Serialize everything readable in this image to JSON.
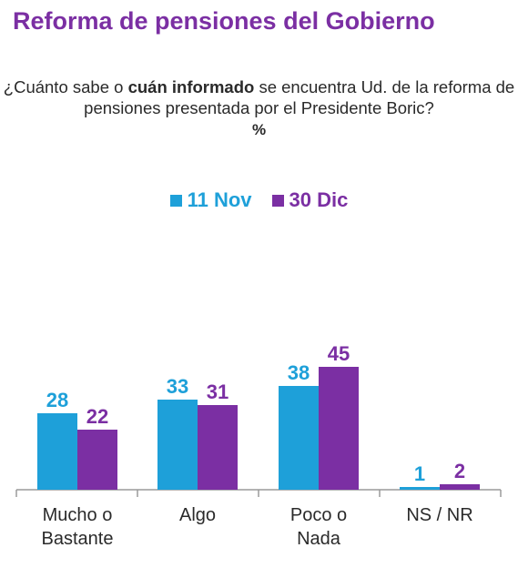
{
  "title": "Reforma de pensiones del Gobierno",
  "question": {
    "part1": "¿Cuánto sabe o ",
    "bold": "cuán informado",
    "part2": " se encuentra Ud. de la reforma de pensiones presentada por el Presidente Boric?",
    "unit": "%"
  },
  "colors": {
    "title": "#7b2fa3",
    "series1": "#1ea0d9",
    "series2": "#7b2fa3",
    "axis": "#9a9a9a",
    "category_text": "#2a2a2a"
  },
  "chart_data": {
    "type": "bar",
    "title": "Reforma de pensiones del Gobierno",
    "categories": [
      [
        "Mucho o",
        "Bastante"
      ],
      [
        "Algo"
      ],
      [
        "Poco o",
        "Nada"
      ],
      [
        "NS / NR"
      ]
    ],
    "series": [
      {
        "name": "11 Nov",
        "values": [
          28,
          33,
          38,
          1
        ]
      },
      {
        "name": "30 Dic",
        "values": [
          22,
          31,
          45,
          2
        ]
      }
    ],
    "xlabel": "",
    "ylabel": "%",
    "ylim": [
      0,
      100
    ],
    "grid": false,
    "legend": "top-center",
    "data_labels": true
  }
}
